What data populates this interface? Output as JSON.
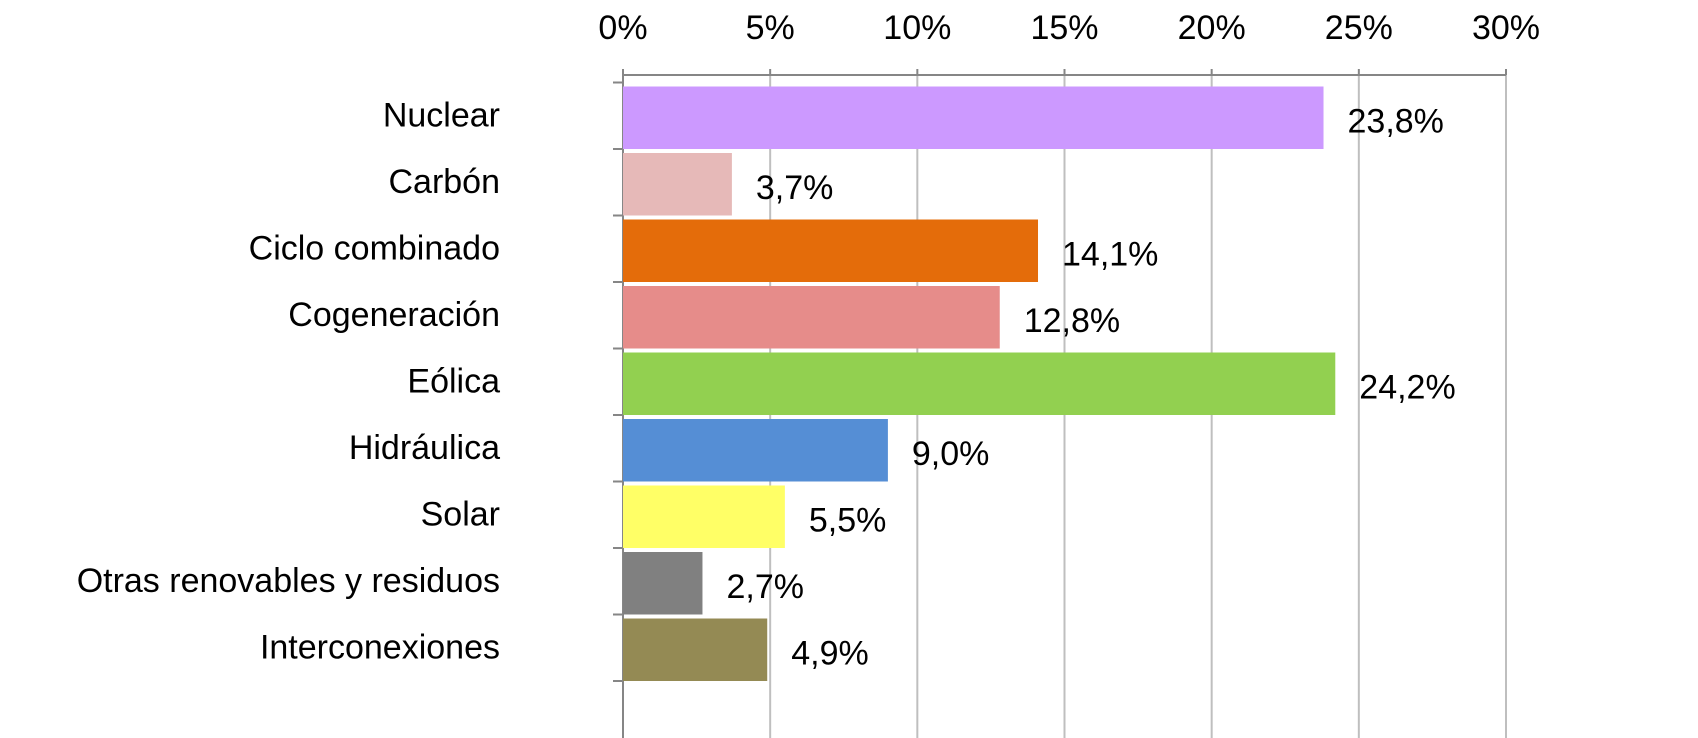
{
  "chart_data": {
    "type": "bar",
    "orientation": "horizontal",
    "categories": [
      "Nuclear",
      "Carbón",
      "Ciclo combinado",
      "Cogeneración",
      "Eólica",
      "Hidráulica",
      "Solar",
      "Otras renovables y residuos",
      "Interconexiones"
    ],
    "values": [
      23.8,
      3.7,
      14.1,
      12.8,
      24.2,
      9.0,
      5.5,
      2.7,
      4.9
    ],
    "value_labels": [
      "23,8%",
      "3,7%",
      "14,1%",
      "12,8%",
      "24,2%",
      "9,0%",
      "5,5%",
      "2,7%",
      "4,9%"
    ],
    "colors": [
      "#cc99ff",
      "#e6b9b8",
      "#e46c0a",
      "#e68c8a",
      "#92d050",
      "#558ed5",
      "#ffff66",
      "#808080",
      "#948a54"
    ],
    "xlim": [
      0,
      30
    ],
    "xticks": [
      {
        "value": 0,
        "label": "0%"
      },
      {
        "value": 5,
        "label": "5%"
      },
      {
        "value": 10,
        "label": "10%"
      },
      {
        "value": 15,
        "label": "15%"
      },
      {
        "value": 20,
        "label": "20%"
      },
      {
        "value": 25,
        "label": "25%"
      },
      {
        "value": 30,
        "label": "30%"
      }
    ],
    "grid": true
  }
}
